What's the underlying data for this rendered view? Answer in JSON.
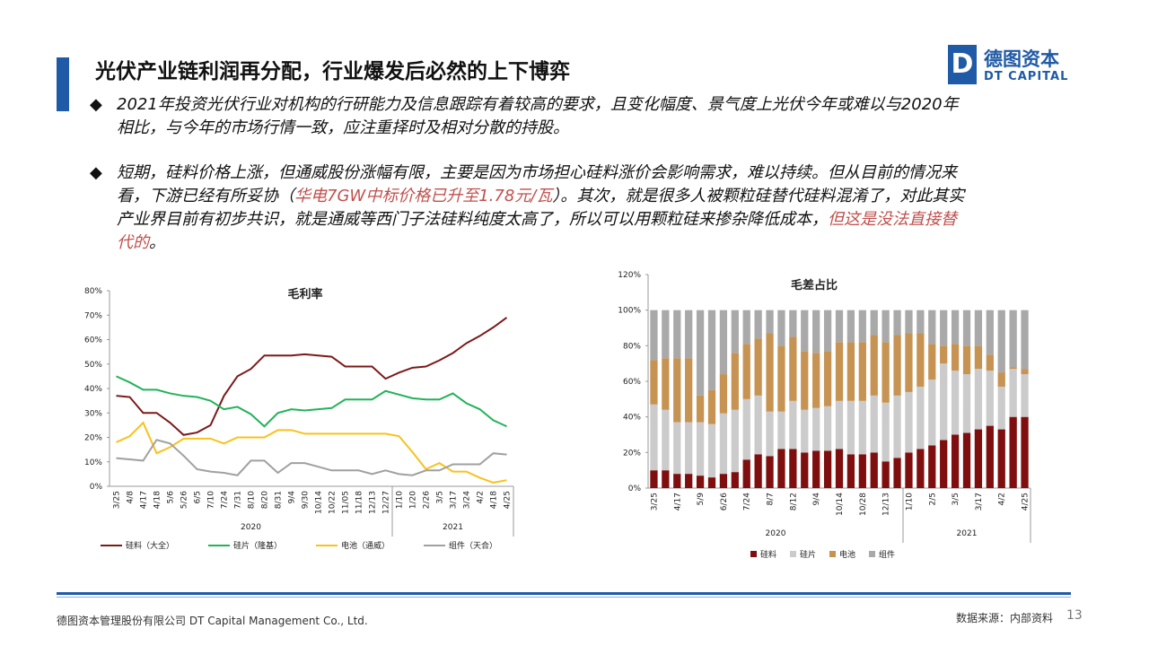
{
  "header": {
    "title": "光伏产业链利润再分配，行业爆发后必然的上下博弈",
    "logo_cn": "德图资本",
    "logo_en": "DT CAPITAL"
  },
  "bullets": [
    {
      "segments": [
        {
          "text": "2021年投资光伏行业对机构的行研能力及信息跟踪有着较高的要求，且变化幅度、景气度上光伏今年或难以与2020年相比，与今年的市场行情一致，应注重择时及相对分散的持股。"
        }
      ]
    },
    {
      "segments": [
        {
          "text": "短期，硅料价格上涨，但通威股份涨幅有限，主要是因为市场担心硅料涨价会影响需求，难以持续。但从目前的情况来看，下游已经有所妥协（"
        },
        {
          "text": "华电7GW中标价格已升至1.78元/瓦",
          "highlight": true
        },
        {
          "text": "）。其次，就是很多人被颗粒硅替代硅料混淆了，对此其实产业界目前有初步共识，就是通威等西门子法硅料纯度太高了，所以可以用颗粒硅来掺杂降低成本，"
        },
        {
          "text": "但这是没法直接替代的",
          "highlight": true
        },
        {
          "text": "。"
        }
      ]
    }
  ],
  "highlight_color": "#c0504d",
  "chart_data": [
    {
      "type": "line",
      "title": "毛利率",
      "categories": [
        "3/25",
        "4/8",
        "4/17",
        "4/18",
        "5/6",
        "5/26",
        "6/5",
        "7/10",
        "7/24",
        "7/31",
        "8/10",
        "8/20",
        "8/31",
        "9/4",
        "9/30",
        "10/14",
        "10/22",
        "11/05",
        "11/18",
        "12/13",
        "12/27",
        "1/10",
        "1/20",
        "2/26",
        "3/5",
        "3/17",
        "3/24",
        "4/2",
        "4/18",
        "4/25"
      ],
      "year_labels": [
        "2020",
        "2021"
      ],
      "series": [
        {
          "name": "硅料（大全）",
          "color": "#7b1a1a",
          "values": [
            37,
            36.5,
            30,
            30,
            26,
            21,
            22,
            25,
            37,
            45,
            48,
            53.5,
            53.5,
            53.5,
            54,
            53.5,
            53,
            49,
            49,
            49,
            44,
            46.5,
            48.5,
            49,
            51.5,
            54.5,
            58.5,
            61.5,
            65,
            69
          ]
        },
        {
          "name": "硅片（隆基）",
          "color": "#21b35a",
          "values": [
            45,
            42.5,
            39.5,
            39.5,
            38,
            37,
            36.5,
            35,
            31.5,
            32.5,
            29.5,
            24.5,
            30,
            31.5,
            31,
            31.5,
            32,
            35.5,
            35.5,
            35.5,
            39,
            37.5,
            36,
            35.5,
            35.5,
            38,
            34,
            31.5,
            27,
            24.5
          ]
        },
        {
          "name": "电池（通威）",
          "color": "#f7c21b",
          "values": [
            18,
            20.5,
            26,
            13.5,
            16,
            19.5,
            19.5,
            19.5,
            17.5,
            20,
            20,
            20,
            23,
            23,
            21.5,
            21.5,
            21.5,
            21.5,
            21.5,
            21.5,
            21.5,
            20.5,
            14,
            7,
            9.5,
            6,
            6,
            3.5,
            1.5,
            2.5
          ]
        },
        {
          "name": "组件（天合）",
          "color": "#a0a0a0",
          "values": [
            11.5,
            11,
            10.5,
            19,
            17.5,
            12.5,
            7,
            6,
            5.5,
            4.5,
            10.5,
            10.5,
            5.5,
            9.5,
            9.5,
            8,
            6.5,
            6.5,
            6.5,
            5,
            6.5,
            5,
            4.5,
            6.5,
            6.5,
            9,
            9,
            9,
            13.5,
            13
          ]
        }
      ],
      "ylim": [
        0,
        80
      ],
      "yticks": [
        {
          "value": 0,
          "label": "0%"
        },
        {
          "value": 10,
          "label": "10%"
        },
        {
          "value": 20,
          "label": "20%"
        },
        {
          "value": 30,
          "label": "30%"
        },
        {
          "value": 40,
          "label": "40%"
        },
        {
          "value": 50,
          "label": "50%"
        },
        {
          "value": 60,
          "label": "60%"
        },
        {
          "value": 70,
          "label": "70%"
        },
        {
          "value": 80,
          "label": "80%"
        }
      ]
    },
    {
      "type": "stacked_bar",
      "title": "毛差占比",
      "categories": [
        "3/25",
        null,
        "4/17",
        null,
        "5/9",
        null,
        "6/26",
        null,
        "7/24",
        null,
        "8/7",
        null,
        "8/12",
        null,
        "9/4",
        null,
        "10/14",
        null,
        "10/28",
        null,
        "12/13",
        null,
        "1/10",
        null,
        "2/5",
        null,
        "3/5",
        null,
        "3/17",
        null,
        "4/2",
        null,
        "4/25"
      ],
      "year_labels": [
        "2020",
        "2021"
      ],
      "series": [
        {
          "name": "硅料",
          "color": "#7f0e0e",
          "values": [
            10,
            10,
            8,
            8,
            7,
            6,
            8,
            9,
            16,
            19,
            18,
            22,
            22,
            20,
            21,
            21,
            22,
            19,
            19,
            20,
            15,
            17,
            20,
            22,
            24,
            27,
            30,
            31,
            33,
            35,
            33,
            40,
            40
          ]
        },
        {
          "name": "硅片",
          "color": "#cbcbcb",
          "values": [
            37,
            34,
            29,
            29,
            30,
            30,
            34,
            35,
            34,
            33,
            25,
            21,
            27,
            24,
            24,
            25,
            27,
            30,
            30,
            32,
            33,
            35,
            34,
            35,
            37,
            43,
            36,
            33,
            34,
            31,
            24,
            27,
            24
          ]
        },
        {
          "name": "电池",
          "color": "#c69352",
          "values": [
            25,
            29,
            36,
            36,
            15,
            19,
            22,
            32,
            31,
            32,
            44,
            37,
            36,
            33,
            31,
            31,
            33,
            33,
            33,
            34,
            34,
            34,
            33,
            30,
            20,
            10,
            15,
            16,
            13,
            9,
            8,
            1,
            3
          ]
        },
        {
          "name": "组件",
          "color": "#a9a9a9",
          "values": [
            28,
            27,
            27,
            27,
            48,
            45,
            36,
            24,
            19,
            16,
            13,
            20,
            15,
            23,
            24,
            23,
            18,
            18,
            18,
            14,
            18,
            14,
            13,
            13,
            19,
            20,
            19,
            20,
            20,
            25,
            35,
            32,
            33
          ]
        }
      ],
      "ylim": [
        0,
        120
      ],
      "yticks": [
        {
          "value": 0,
          "label": "0%"
        },
        {
          "value": 20,
          "label": "20%"
        },
        {
          "value": 40,
          "label": "40%"
        },
        {
          "value": 60,
          "label": "60%"
        },
        {
          "value": 80,
          "label": "80%"
        },
        {
          "value": 100,
          "label": "100%"
        },
        {
          "value": 120,
          "label": "120%"
        }
      ]
    }
  ],
  "footer": {
    "company": "德图资本管理股份有限公司 DT Capital Management Co., Ltd.",
    "source": "数据来源：内部资料",
    "page": "13"
  }
}
